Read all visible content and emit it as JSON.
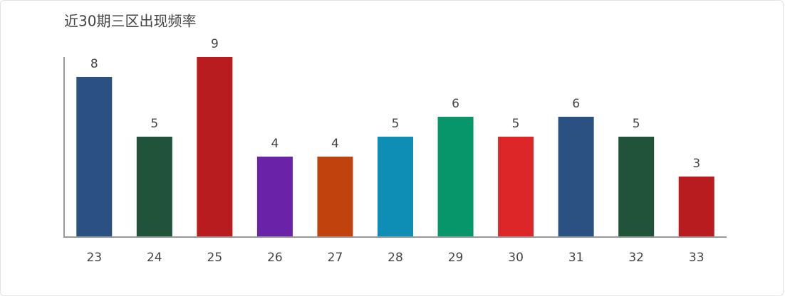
{
  "chart_data": {
    "type": "bar",
    "title": "近30期三区出现频率",
    "categories": [
      "23",
      "24",
      "25",
      "26",
      "27",
      "28",
      "29",
      "30",
      "31",
      "32",
      "33"
    ],
    "values": [
      8,
      5,
      9,
      4,
      4,
      5,
      6,
      5,
      6,
      5,
      3
    ],
    "colors": [
      "#2b5183",
      "#21523a",
      "#b81c1e",
      "#6a22a8",
      "#c2420e",
      "#0e8db5",
      "#06966a",
      "#dc2627",
      "#2b5183",
      "#21523a",
      "#b81c1e"
    ],
    "ylim": [
      0,
      9
    ]
  }
}
